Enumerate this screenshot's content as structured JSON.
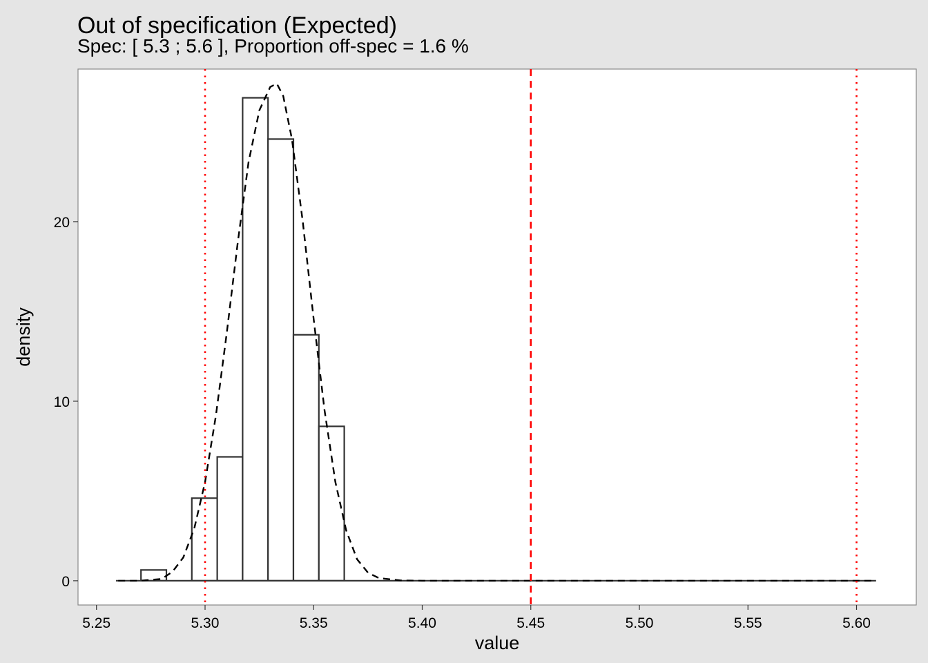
{
  "chart_data": {
    "type": "bar",
    "title": "Out of specification (Expected)",
    "subtitle": "Spec: [ 5.3 ; 5.6 ], Proportion off-spec =  1.6 %",
    "xlabel": "value",
    "ylabel": "density",
    "xlim": [
      5.2415,
      5.6275
    ],
    "ylim": [
      -1.35,
      28.5
    ],
    "x_ticks": [
      5.25,
      5.3,
      5.35,
      5.4,
      5.45,
      5.5,
      5.55,
      5.6
    ],
    "x_tick_labels": [
      "5.25",
      "5.30",
      "5.35",
      "5.40",
      "5.45",
      "5.50",
      "5.55",
      "5.60"
    ],
    "y_ticks": [
      0,
      10,
      20
    ],
    "y_tick_labels": [
      "0",
      "10",
      "20"
    ],
    "baseline": {
      "x_start": 5.259,
      "x_end": 5.609
    },
    "histogram": [
      {
        "x0": 5.2705,
        "x1": 5.2822,
        "density": 0.6
      },
      {
        "x0": 5.2939,
        "x1": 5.3056,
        "density": 4.6
      },
      {
        "x0": 5.3056,
        "x1": 5.3173,
        "density": 6.9
      },
      {
        "x0": 5.3173,
        "x1": 5.329,
        "density": 26.9
      },
      {
        "x0": 5.329,
        "x1": 5.3407,
        "density": 24.6
      },
      {
        "x0": 5.3407,
        "x1": 5.3524,
        "density": 13.7
      },
      {
        "x0": 5.3524,
        "x1": 5.3641,
        "density": 8.6
      }
    ],
    "density_curve": {
      "style": "dashed",
      "x": [
        5.26,
        5.27,
        5.28,
        5.285,
        5.29,
        5.295,
        5.3,
        5.305,
        5.31,
        5.315,
        5.32,
        5.325,
        5.33,
        5.333,
        5.336,
        5.34,
        5.345,
        5.35,
        5.355,
        5.36,
        5.365,
        5.37,
        5.375,
        5.38,
        5.39,
        5.4,
        5.45,
        5.5,
        5.55,
        5.609
      ],
      "y": [
        0,
        0,
        0.1,
        0.5,
        1.3,
        2.9,
        5.5,
        9.2,
        13.8,
        18.8,
        23.3,
        26.2,
        27.5,
        27.7,
        27.0,
        24.6,
        20.0,
        14.6,
        9.5,
        5.5,
        2.8,
        1.2,
        0.45,
        0.15,
        0.02,
        0,
        0,
        0,
        0,
        0
      ]
    },
    "reference_lines": [
      {
        "x": 5.3,
        "style": "dotted",
        "color": "#ff0000"
      },
      {
        "x": 5.45,
        "style": "dashed",
        "color": "#ff0000"
      },
      {
        "x": 5.6,
        "style": "dotted",
        "color": "#ff0000"
      }
    ],
    "grid": false,
    "legend": "none"
  }
}
